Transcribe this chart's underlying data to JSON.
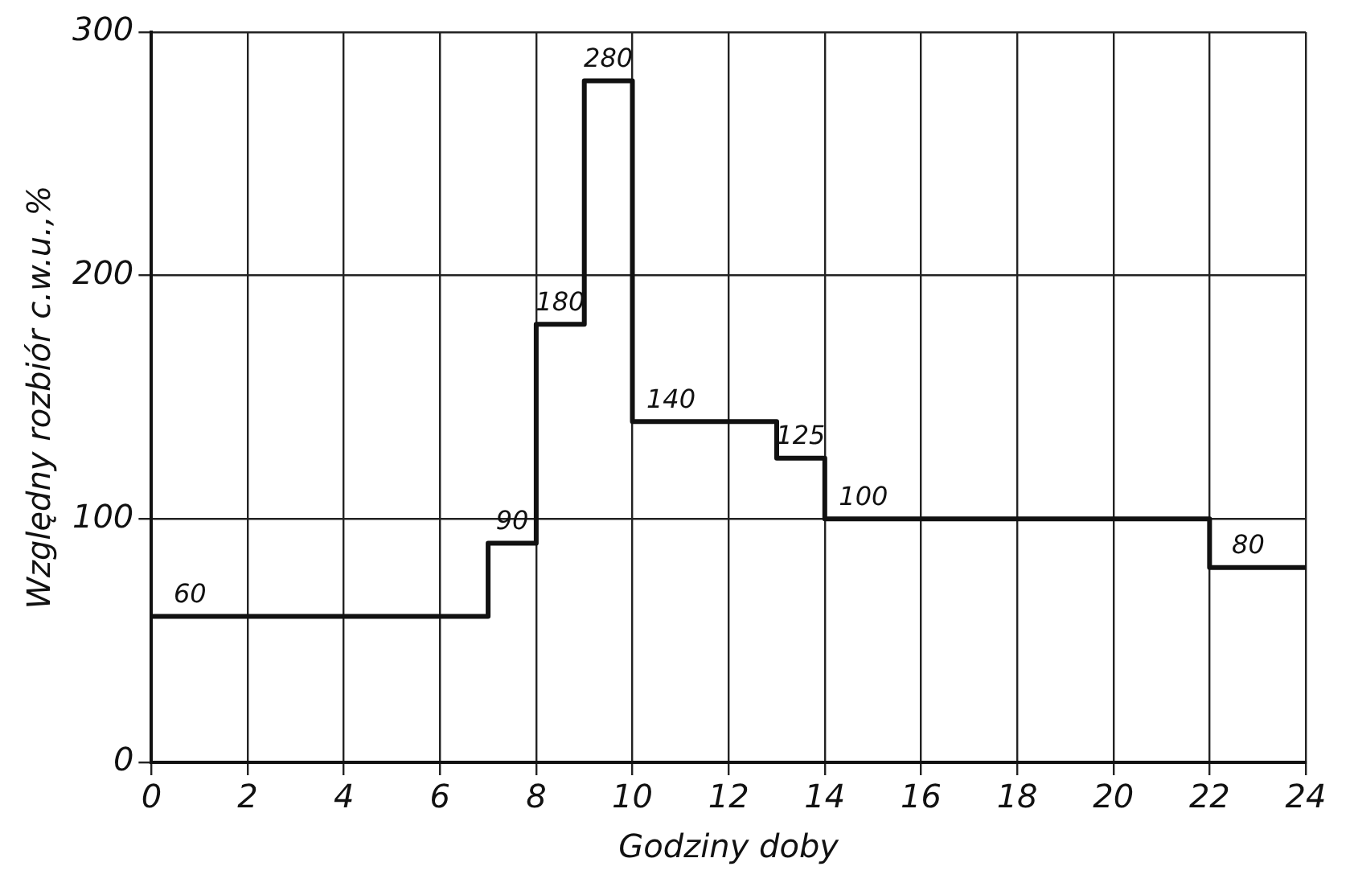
{
  "chart_data": {
    "type": "step",
    "xlabel": "Godziny doby",
    "ylabel": "Względny rozbiór c.w.u.,%",
    "x": [
      0,
      7,
      8,
      9,
      10,
      13,
      14,
      22,
      24
    ],
    "series": [
      {
        "color": "#111111",
        "values": [
          60,
          90,
          180,
          280,
          140,
          125,
          100,
          80,
          80
        ],
        "value_labels": [
          "60",
          "90",
          "180",
          "280",
          "140",
          "125",
          "100",
          "80",
          null
        ]
      }
    ],
    "xlim": [
      0,
      24
    ],
    "xticks": [
      0,
      2,
      4,
      6,
      8,
      10,
      12,
      14,
      16,
      18,
      20,
      22,
      24
    ],
    "ylim": [
      0,
      300
    ],
    "yticks": [
      0,
      100,
      200,
      300
    ],
    "grid": true,
    "legend": false
  }
}
